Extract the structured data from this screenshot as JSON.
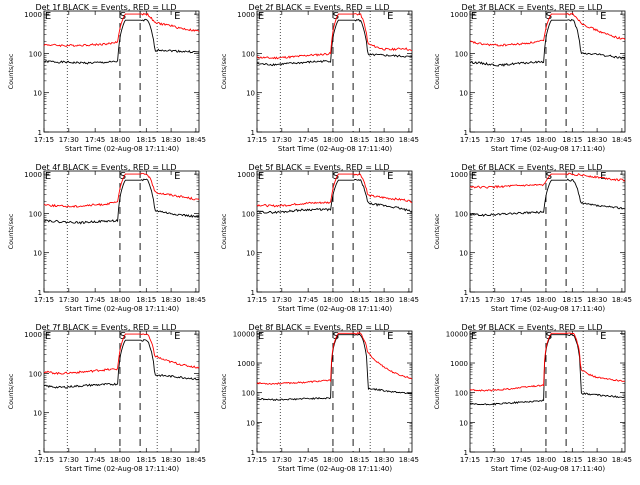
{
  "chart_data": [
    {
      "type": "line",
      "title": "Det 1f BLACK = Events, RED = LLD",
      "xlabel": "Start Time (02-Aug-08 17:11:40)",
      "ylabel": "Counts/sec",
      "x_ticks": [
        "17:15",
        "17:30",
        "17:45",
        "18:00",
        "18:15",
        "18:30",
        "18:45"
      ],
      "y_ticks": [
        "1",
        "10",
        "100",
        "1000"
      ],
      "ylim": [
        1,
        1200
      ],
      "ymax_label": "1000",
      "y_scale": "log",
      "markers": [
        "E",
        "S",
        "E"
      ],
      "series": [
        {
          "name": "Events",
          "color": "#000000",
          "values": [
            62,
            62,
            60,
            60,
            58,
            58,
            57,
            58,
            59,
            60,
            62,
            700,
            700,
            700,
            700,
            120,
            122,
            118,
            115,
            112,
            110,
            108
          ]
        },
        {
          "name": "LLD",
          "color": "#ff0000",
          "values": [
            165,
            165,
            160,
            158,
            160,
            162,
            165,
            168,
            172,
            178,
            200,
            1000,
            1000,
            1000,
            1000,
            600,
            560,
            520,
            460,
            420,
            390,
            370
          ]
        }
      ]
    },
    {
      "type": "line",
      "title": "Det 2f BLACK = Events, RED = LLD",
      "xlabel": "Start Time (02-Aug-08 17:11:40)",
      "ylabel": "Counts/sec",
      "x_ticks": [
        "17:15",
        "17:30",
        "17:45",
        "18:00",
        "18:15",
        "18:30",
        "18:45"
      ],
      "y_ticks": [
        "1",
        "10",
        "100",
        "1000"
      ],
      "ylim": [
        1,
        1200
      ],
      "ymax_label": "1000",
      "y_scale": "log",
      "markers": [
        "E",
        "S",
        "E"
      ],
      "series": [
        {
          "name": "Events",
          "color": "#000000",
          "values": [
            55,
            53,
            52,
            53,
            55,
            56,
            58,
            60,
            62,
            63,
            64,
            700,
            700,
            700,
            700,
            90,
            92,
            90,
            88,
            86,
            84,
            80
          ]
        },
        {
          "name": "LLD",
          "color": "#ff0000",
          "values": [
            80,
            78,
            76,
            78,
            80,
            82,
            86,
            90,
            92,
            95,
            100,
            1000,
            1000,
            1000,
            1000,
            175,
            150,
            130,
            125,
            130,
            135,
            115
          ]
        }
      ]
    },
    {
      "type": "line",
      "title": "Det 3f BLACK = Events, RED = LLD",
      "xlabel": "Start Time (02-Aug-08 17:11:40)",
      "ylabel": "Counts/sec",
      "x_ticks": [
        "17:15",
        "17:30",
        "17:45",
        "18:00",
        "18:15",
        "18:30",
        "18:45"
      ],
      "y_ticks": [
        "1",
        "10",
        "100",
        "1000"
      ],
      "ylim": [
        1,
        1200
      ],
      "ymax_label": "1000",
      "y_scale": "log",
      "markers": [
        "E",
        "S",
        "E"
      ],
      "series": [
        {
          "name": "Events",
          "color": "#000000",
          "values": [
            60,
            58,
            55,
            52,
            50,
            52,
            55,
            56,
            58,
            60,
            62,
            700,
            700,
            700,
            700,
            100,
            98,
            96,
            90,
            85,
            80,
            75
          ]
        },
        {
          "name": "LLD",
          "color": "#ff0000",
          "values": [
            200,
            180,
            170,
            165,
            160,
            165,
            170,
            175,
            185,
            195,
            210,
            1000,
            1000,
            1000,
            1000,
            600,
            480,
            400,
            330,
            290,
            250,
            230
          ]
        }
      ]
    },
    {
      "type": "line",
      "title": "Det 4f BLACK = Events, RED = LLD",
      "xlabel": "Start Time (02-Aug-08 17:11:40)",
      "ylabel": "Counts/sec",
      "x_ticks": [
        "17:15",
        "17:30",
        "17:45",
        "18:00",
        "18:15",
        "18:30",
        "18:45"
      ],
      "y_ticks": [
        "1",
        "10",
        "100",
        "1000"
      ],
      "ylim": [
        1,
        1200
      ],
      "ymax_label": "1000",
      "y_scale": "log",
      "markers": [
        "E",
        "S",
        "E"
      ],
      "series": [
        {
          "name": "Events",
          "color": "#000000",
          "values": [
            68,
            64,
            62,
            60,
            60,
            58,
            60,
            62,
            63,
            64,
            66,
            700,
            700,
            700,
            700,
            120,
            110,
            100,
            95,
            90,
            85,
            80
          ]
        },
        {
          "name": "LLD",
          "color": "#ff0000",
          "values": [
            170,
            160,
            155,
            152,
            150,
            155,
            160,
            165,
            170,
            180,
            195,
            1000,
            1000,
            1000,
            1000,
            350,
            320,
            300,
            280,
            260,
            240,
            220
          ]
        }
      ]
    },
    {
      "type": "line",
      "title": "Det 5f BLACK = Events, RED = LLD",
      "xlabel": "Start Time (02-Aug-08 17:11:40)",
      "ylabel": "Counts/sec",
      "x_ticks": [
        "17:15",
        "17:30",
        "17:45",
        "18:00",
        "18:15",
        "18:30",
        "18:45"
      ],
      "y_ticks": [
        "1",
        "10",
        "100",
        "1000"
      ],
      "ylim": [
        1,
        1200
      ],
      "ymax_label": "1000",
      "y_scale": "log",
      "markers": [
        "E",
        "S",
        "E"
      ],
      "series": [
        {
          "name": "Events",
          "color": "#000000",
          "values": [
            110,
            108,
            106,
            108,
            112,
            118,
            122,
            125,
            126,
            126,
            125,
            700,
            700,
            700,
            700,
            180,
            170,
            160,
            150,
            140,
            125,
            110
          ]
        },
        {
          "name": "LLD",
          "color": "#ff0000",
          "values": [
            165,
            160,
            155,
            158,
            162,
            170,
            178,
            183,
            186,
            188,
            190,
            1000,
            1000,
            1000,
            1000,
            290,
            270,
            255,
            240,
            230,
            220,
            200
          ]
        }
      ]
    },
    {
      "type": "line",
      "title": "Det 6f BLACK = Events, RED = LLD",
      "xlabel": "Start Time (02-Aug-08 17:11:40)",
      "ylabel": "Counts/sec",
      "x_ticks": [
        "17:15",
        "17:30",
        "17:45",
        "18:00",
        "18:15",
        "18:30",
        "18:45"
      ],
      "y_ticks": [
        "1",
        "10",
        "100",
        "1000"
      ],
      "ylim": [
        1,
        1200
      ],
      "ymax_label": "1000",
      "y_scale": "log",
      "markers": [
        "E",
        "S",
        "E"
      ],
      "series": [
        {
          "name": "Events",
          "color": "#000000",
          "values": [
            95,
            92,
            90,
            92,
            95,
            98,
            100,
            102,
            104,
            106,
            108,
            700,
            700,
            700,
            700,
            180,
            170,
            160,
            150,
            145,
            140,
            135
          ]
        },
        {
          "name": "LLD",
          "color": "#ff0000",
          "values": [
            480,
            470,
            460,
            470,
            480,
            490,
            500,
            510,
            515,
            520,
            525,
            1000,
            1000,
            1000,
            1000,
            950,
            900,
            850,
            800,
            760,
            720,
            690
          ]
        }
      ]
    },
    {
      "type": "line",
      "title": "Det 7f BLACK = Events, RED = LLD",
      "xlabel": "Start Time (02-Aug-08 17:11:40)",
      "ylabel": "Counts/sec",
      "x_ticks": [
        "17:15",
        "17:30",
        "17:45",
        "18:00",
        "18:15",
        "18:30",
        "18:45"
      ],
      "y_ticks": [
        "1",
        "10",
        "100",
        "1000"
      ],
      "ylim": [
        1,
        1200
      ],
      "ymax_label": "1000",
      "y_scale": "log",
      "markers": [
        "E",
        "S",
        "E"
      ],
      "series": [
        {
          "name": "Events",
          "color": "#000000",
          "values": [
            48,
            46,
            44,
            45,
            47,
            48,
            50,
            51,
            52,
            53,
            54,
            700,
            700,
            700,
            700,
            92,
            88,
            85,
            82,
            78,
            75,
            70
          ]
        },
        {
          "name": "LLD",
          "color": "#ff0000",
          "values": [
            110,
            105,
            100,
            102,
            105,
            108,
            112,
            118,
            122,
            126,
            130,
            1000,
            1000,
            1000,
            1000,
            280,
            230,
            200,
            180,
            160,
            150,
            140
          ]
        }
      ]
    },
    {
      "type": "line",
      "title": "Det 8f BLACK = Events, RED = LLD",
      "xlabel": "Start Time (02-Aug-08 17:11:40)",
      "ylabel": "Counts/sec",
      "x_ticks": [
        "17:15",
        "17:30",
        "17:45",
        "18:00",
        "18:15",
        "18:30",
        "18:45"
      ],
      "y_ticks": [
        "1",
        "10",
        "100",
        "1000",
        "10000"
      ],
      "ylim": [
        1,
        12000
      ],
      "ymax_label": "10000",
      "y_scale": "log",
      "markers": [
        "E",
        "S",
        "E"
      ],
      "series": [
        {
          "name": "Events",
          "color": "#000000",
          "values": [
            62,
            60,
            58,
            58,
            60,
            60,
            62,
            64,
            64,
            65,
            66,
            9000,
            9000,
            9000,
            9000,
            140,
            130,
            120,
            110,
            105,
            100,
            95
          ]
        },
        {
          "name": "LLD",
          "color": "#ff0000",
          "values": [
            210,
            205,
            200,
            205,
            210,
            215,
            220,
            230,
            240,
            250,
            260,
            10000,
            10000,
            10000,
            10000,
            2200,
            1200,
            800,
            550,
            420,
            350,
            300
          ]
        }
      ]
    },
    {
      "type": "line",
      "title": "Det 9f BLACK = Events, RED = LLD",
      "xlabel": "Start Time (02-Aug-08 17:11:40)",
      "ylabel": "Counts/sec",
      "x_ticks": [
        "17:15",
        "17:30",
        "17:45",
        "18:00",
        "18:15",
        "18:30",
        "18:45"
      ],
      "y_ticks": [
        "1",
        "10",
        "100",
        "1000",
        "10000"
      ],
      "ylim": [
        1,
        12000
      ],
      "ymax_label": "10000",
      "y_scale": "log",
      "markers": [
        "E",
        "S",
        "E"
      ],
      "series": [
        {
          "name": "Events",
          "color": "#000000",
          "values": [
            42,
            40,
            40,
            41,
            42,
            44,
            46,
            48,
            50,
            52,
            54,
            9000,
            9000,
            9000,
            9000,
            95,
            90,
            85,
            80,
            76,
            73,
            70
          ]
        },
        {
          "name": "LLD",
          "color": "#ff0000",
          "values": [
            125,
            120,
            118,
            120,
            125,
            132,
            140,
            150,
            160,
            170,
            180,
            10000,
            10000,
            10000,
            10000,
            600,
            420,
            340,
            300,
            280,
            260,
            240
          ]
        }
      ]
    }
  ]
}
